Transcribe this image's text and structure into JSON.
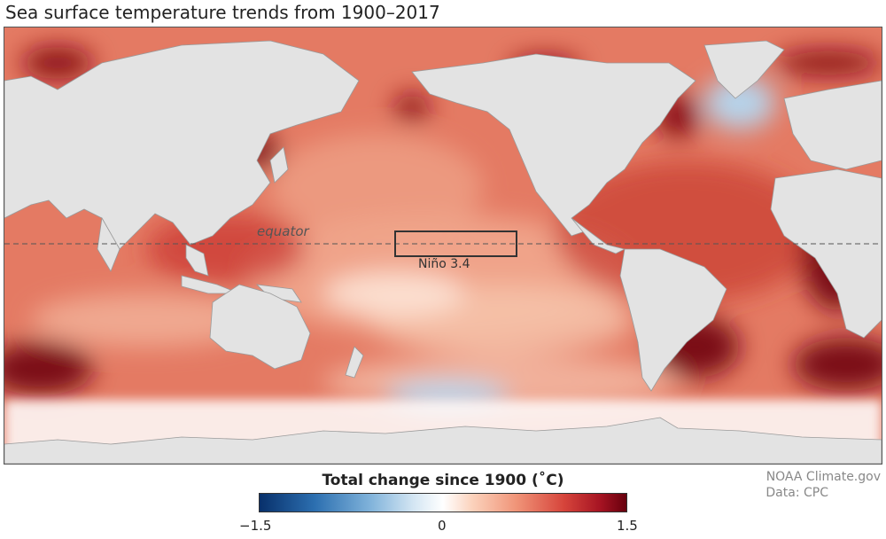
{
  "title": "Sea surface temperature trends from 1900–2017",
  "map": {
    "equator_label": "equator",
    "region_label": "Niño 3.4",
    "land_color": "#e6e6e6",
    "ocean_warm_color": "#e8826a",
    "ocean_hot_color": "#a51322",
    "ocean_cool_color": "#bcd6ec"
  },
  "legend": {
    "title": "Total change since 1900 (˚C)",
    "min_label": "−1.5",
    "mid_label": "0",
    "max_label": "1.5",
    "range": [
      -1.5,
      1.5
    ]
  },
  "credits": {
    "source": "NOAA Climate.gov",
    "data": "Data: CPC"
  }
}
